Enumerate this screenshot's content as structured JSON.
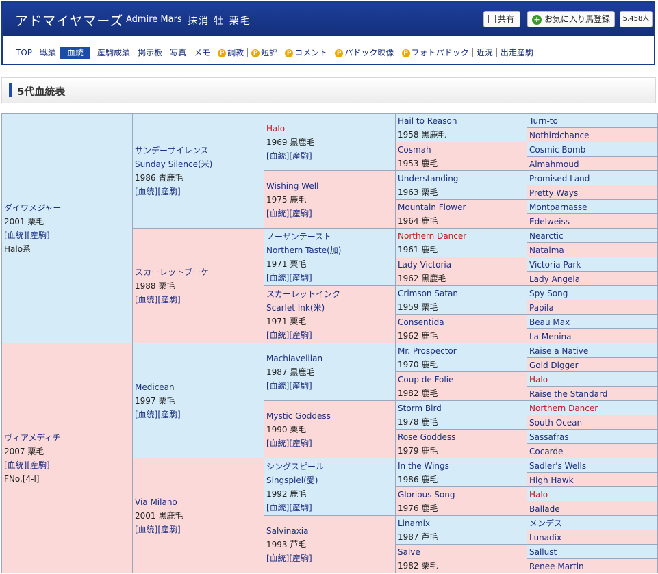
{
  "header": {
    "horse_name": "アドマイヤマーズ",
    "horse_name_en": "Admire Mars",
    "status_info": "抹消 牡 栗毛",
    "share_label": "共有",
    "favorite_label": "お気に入り馬登録",
    "favorite_count": "5,458人"
  },
  "nav": {
    "items": [
      "TOP",
      "戦績",
      "血統",
      "産駒成績",
      "掲示板",
      "写真",
      "メモ",
      "調教",
      "短評",
      "コメント",
      "パドック映像",
      "フォトパドック",
      "近況",
      "出走産駒"
    ],
    "active": "血統"
  },
  "section_title": "5代血統表",
  "links_label": "[血統][産駒]",
  "pedigree": {
    "gen1": [
      {
        "name": "ダイワメジャー",
        "info": "2001 栗毛",
        "note": "Halo系",
        "sex": "m"
      },
      {
        "name": "ヴィアメディチ",
        "info": "2007 栗毛",
        "note": "FNo.[4-l]",
        "sex": "f"
      }
    ],
    "gen2": [
      {
        "name": "サンデーサイレンス",
        "alt": "Sunday Silence(米)",
        "info": "1986 青鹿毛",
        "sex": "m"
      },
      {
        "name": "スカーレットブーケ",
        "info": "1988 栗毛",
        "sex": "f"
      },
      {
        "name": "Medicean",
        "info": "1997 栗毛",
        "sex": "m"
      },
      {
        "name": "Via Milano",
        "info": "2001 黒鹿毛",
        "sex": "f"
      }
    ],
    "gen3": [
      {
        "name": "Halo",
        "info": "1969 黒鹿毛",
        "sex": "m",
        "red": true
      },
      {
        "name": "Wishing Well",
        "info": "1975 鹿毛",
        "sex": "f"
      },
      {
        "name": "ノーザンテースト",
        "alt": "Northern Taste(加)",
        "info": "1971 栗毛",
        "sex": "m"
      },
      {
        "name": "スカーレットインク",
        "alt": "Scarlet Ink(米)",
        "info": "1971 栗毛",
        "sex": "f"
      },
      {
        "name": "Machiavellian",
        "info": "1987 黒鹿毛",
        "sex": "m"
      },
      {
        "name": "Mystic Goddess",
        "info": "1990 栗毛",
        "sex": "f"
      },
      {
        "name": "シングスピール",
        "alt": "Singspiel(愛)",
        "info": "1992 鹿毛",
        "sex": "m"
      },
      {
        "name": "Salvinaxia",
        "info": "1993 芦毛",
        "sex": "f"
      }
    ],
    "gen4": [
      {
        "name": "Hail to Reason",
        "info": "1958 黒鹿毛",
        "sex": "m"
      },
      {
        "name": "Cosmah",
        "info": "1953 鹿毛",
        "sex": "f"
      },
      {
        "name": "Understanding",
        "info": "1963 栗毛",
        "sex": "m"
      },
      {
        "name": "Mountain Flower",
        "info": "1964 鹿毛",
        "sex": "f"
      },
      {
        "name": "Northern Dancer",
        "info": "1961 鹿毛",
        "sex": "m",
        "red": true
      },
      {
        "name": "Lady Victoria",
        "info": "1962 黒鹿毛",
        "sex": "f"
      },
      {
        "name": "Crimson Satan",
        "info": "1959 栗毛",
        "sex": "m"
      },
      {
        "name": "Consentida",
        "info": "1962 鹿毛",
        "sex": "f"
      },
      {
        "name": "Mr. Prospector",
        "info": "1970 鹿毛",
        "sex": "m"
      },
      {
        "name": "Coup de Folie",
        "info": "1982 鹿毛",
        "sex": "f"
      },
      {
        "name": "Storm Bird",
        "info": "1978 鹿毛",
        "sex": "m"
      },
      {
        "name": "Rose Goddess",
        "info": "1979 鹿毛",
        "sex": "f"
      },
      {
        "name": "In the Wings",
        "info": "1986 鹿毛",
        "sex": "m"
      },
      {
        "name": "Glorious Song",
        "info": "1976 鹿毛",
        "sex": "f"
      },
      {
        "name": "Linamix",
        "info": "1987 芦毛",
        "sex": "m"
      },
      {
        "name": "Salve",
        "info": "1982 栗毛",
        "sex": "f"
      }
    ],
    "gen5": [
      {
        "name": "Turn-to",
        "sex": "m"
      },
      {
        "name": "Nothirdchance",
        "sex": "f"
      },
      {
        "name": "Cosmic Bomb",
        "sex": "m"
      },
      {
        "name": "Almahmoud",
        "sex": "f"
      },
      {
        "name": "Promised Land",
        "sex": "m"
      },
      {
        "name": "Pretty Ways",
        "sex": "f"
      },
      {
        "name": "Montparnasse",
        "sex": "m"
      },
      {
        "name": "Edelweiss",
        "sex": "f"
      },
      {
        "name": "Nearctic",
        "sex": "m"
      },
      {
        "name": "Natalma",
        "sex": "f"
      },
      {
        "name": "Victoria Park",
        "sex": "m"
      },
      {
        "name": "Lady Angela",
        "sex": "f"
      },
      {
        "name": "Spy Song",
        "sex": "m"
      },
      {
        "name": "Papila",
        "sex": "f"
      },
      {
        "name": "Beau Max",
        "sex": "m"
      },
      {
        "name": "La Menina",
        "sex": "f"
      },
      {
        "name": "Raise a Native",
        "sex": "m"
      },
      {
        "name": "Gold Digger",
        "sex": "f"
      },
      {
        "name": "Halo",
        "sex": "m",
        "red": true
      },
      {
        "name": "Raise the Standard",
        "sex": "f"
      },
      {
        "name": "Northern Dancer",
        "sex": "m",
        "red": true
      },
      {
        "name": "South Ocean",
        "sex": "f"
      },
      {
        "name": "Sassafras",
        "sex": "m"
      },
      {
        "name": "Cocarde",
        "sex": "f"
      },
      {
        "name": "Sadler's Wells",
        "sex": "m"
      },
      {
        "name": "High Hawk",
        "sex": "f"
      },
      {
        "name": "Halo",
        "sex": "m",
        "red": true
      },
      {
        "name": "Ballade",
        "sex": "f"
      },
      {
        "name": "メンデス",
        "sex": "m"
      },
      {
        "name": "Lunadix",
        "sex": "f"
      },
      {
        "name": "Sallust",
        "sex": "m"
      },
      {
        "name": "Renee Martin",
        "sex": "f"
      }
    ]
  },
  "colors": {
    "sire_bg": "#d5ecf8",
    "dam_bg": "#fbd9d9",
    "header_bg": "#1d3f9a",
    "highlight_name": "#c8161d"
  }
}
